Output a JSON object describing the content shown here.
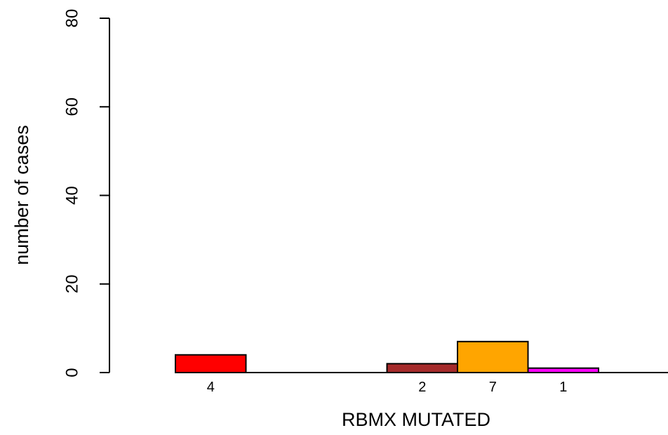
{
  "chart_data": {
    "type": "bar",
    "title": "",
    "xlabel": "RBMX MUTATED",
    "ylabel": "number of cases",
    "ylim": [
      0,
      80
    ],
    "yticks": [
      0,
      20,
      40,
      60,
      80
    ],
    "grid": false,
    "legend": "none",
    "bars": [
      {
        "label": "4",
        "value": 4,
        "color": "#ff0000"
      },
      {
        "label": "",
        "value": 0,
        "color": "#ffffff"
      },
      {
        "label": "",
        "value": 0,
        "color": "#ffffff"
      },
      {
        "label": "2",
        "value": 2,
        "color": "#a52a2a"
      },
      {
        "label": "7",
        "value": 7,
        "color": "#ffa500"
      },
      {
        "label": "1",
        "value": 1,
        "color": "#ff00ff"
      },
      {
        "label": "",
        "value": 0,
        "color": "#ffffff"
      }
    ]
  }
}
